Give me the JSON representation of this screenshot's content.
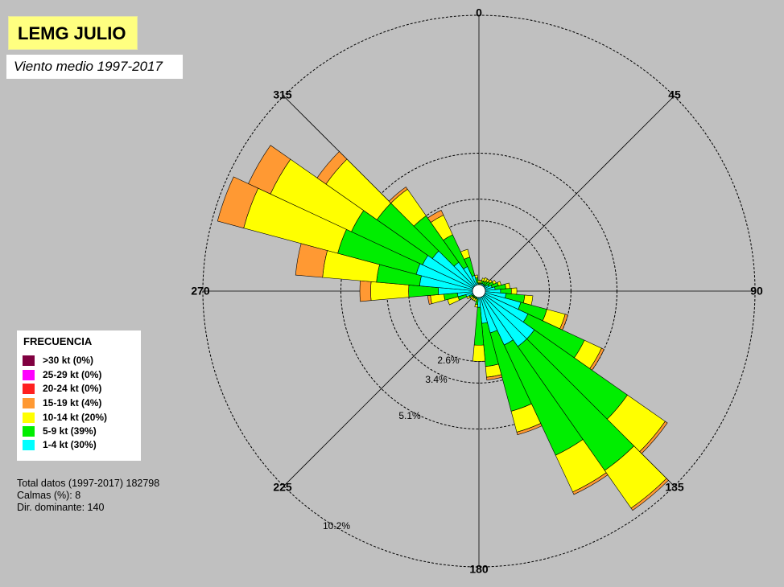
{
  "title": "LEMG JULIO",
  "subtitle": "Viento medio 1997-2017",
  "legend": {
    "title": "FRECUENCIA",
    "items": [
      {
        "label": ">30 kt (0%)",
        "color": "#800040"
      },
      {
        "label": "25-29 kt (0%)",
        "color": "#ff00ff"
      },
      {
        "label": "20-24 kt (0%)",
        "color": "#ff2020"
      },
      {
        "label": "15-19 kt (4%)",
        "color": "#ff9933"
      },
      {
        "label": "10-14 kt (20%)",
        "color": "#ffff00"
      },
      {
        "label": "5-9 kt (39%)",
        "color": "#00ee00"
      },
      {
        "label": "1-4 kt (30%)",
        "color": "#00ffff"
      }
    ]
  },
  "info": {
    "total": "Total datos (1997-2017) 182798",
    "calmas": "Calmas (%): 8",
    "dominante": "Dir. dominante:  140"
  },
  "chart_data": {
    "type": "wind-rose",
    "direction_labels": [
      "0",
      "45",
      "90",
      "135",
      "180",
      "225",
      "270",
      "315"
    ],
    "ring_labels": [
      "2.6%",
      "3.4%",
      "5.1%",
      "10.2%"
    ],
    "rings_percent": [
      2.6,
      3.4,
      5.1,
      10.2
    ],
    "bins": [
      "1-4 kt",
      "5-9 kt",
      "10-14 kt",
      "15-19 kt",
      "20-24 kt",
      "25-29 kt",
      ">30 kt"
    ],
    "bin_colors": [
      "#00ffff",
      "#00ee00",
      "#ffff00",
      "#ff9933",
      "#ff2020",
      "#ff00ff",
      "#800040"
    ],
    "directions": [
      {
        "dir": 10,
        "cum": [
          0.2,
          0.3,
          0.4
        ]
      },
      {
        "dir": 20,
        "cum": [
          0.3,
          0.4,
          0.5
        ]
      },
      {
        "dir": 30,
        "cum": [
          0.3,
          0.4,
          0.55
        ]
      },
      {
        "dir": 40,
        "cum": [
          0.3,
          0.45,
          0.55
        ]
      },
      {
        "dir": 50,
        "cum": [
          0.3,
          0.5,
          0.6
        ]
      },
      {
        "dir": 60,
        "cum": [
          0.4,
          0.6,
          0.7
        ]
      },
      {
        "dir": 70,
        "cum": [
          0.5,
          0.75,
          0.85
        ]
      },
      {
        "dir": 80,
        "cum": [
          0.6,
          1.0,
          1.15
        ]
      },
      {
        "dir": 90,
        "cum": [
          0.8,
          1.2,
          1.4
        ]
      },
      {
        "dir": 100,
        "cum": [
          1.0,
          1.7,
          2.0
        ]
      },
      {
        "dir": 110,
        "cum": [
          1.6,
          2.6,
          3.3,
          3.4
        ]
      },
      {
        "dir": 120,
        "cum": [
          2.0,
          4.3,
          5.0,
          5.1
        ]
      },
      {
        "dir": 130,
        "cum": [
          2.5,
          6.7,
          8.4,
          8.5
        ]
      },
      {
        "dir": 140,
        "cum": [
          2.5,
          8.1,
          9.8,
          9.9
        ]
      },
      {
        "dir": 150,
        "cum": [
          2.2,
          6.7,
          8.2,
          8.3
        ]
      },
      {
        "dir": 160,
        "cum": [
          1.6,
          4.6,
          5.4,
          5.5
        ]
      },
      {
        "dir": 170,
        "cum": [
          1.2,
          2.8,
          3.2,
          3.3
        ]
      },
      {
        "dir": 180,
        "cum": [
          0.6,
          2.0,
          2.6
        ]
      },
      {
        "dir": 190,
        "cum": [
          0.3,
          0.5,
          0.6
        ]
      },
      {
        "dir": 200,
        "cum": [
          0.2,
          0.3,
          0.4
        ]
      },
      {
        "dir": 210,
        "cum": [
          0.2,
          0.3,
          0.4
        ]
      },
      {
        "dir": 220,
        "cum": [
          0.2,
          0.3,
          0.4
        ]
      },
      {
        "dir": 230,
        "cum": [
          0.2,
          0.3,
          0.4
        ]
      },
      {
        "dir": 240,
        "cum": [
          0.3,
          0.4,
          0.5
        ]
      },
      {
        "dir": 250,
        "cum": [
          0.5,
          0.8,
          1.2
        ]
      },
      {
        "dir": 260,
        "cum": [
          0.8,
          1.3,
          1.8,
          1.9
        ]
      },
      {
        "dir": 270,
        "cum": [
          1.5,
          2.6,
          4.0,
          4.4
        ]
      },
      {
        "dir": 280,
        "cum": [
          2.2,
          3.8,
          5.8,
          6.8
        ]
      },
      {
        "dir": 290,
        "cum": [
          2.4,
          5.4,
          9.0,
          10.0
        ]
      },
      {
        "dir": 300,
        "cum": [
          2.3,
          5.2,
          8.5,
          9.4
        ]
      },
      {
        "dir": 310,
        "cum": [
          2.1,
          4.6,
          6.9,
          7.3
        ]
      },
      {
        "dir": 320,
        "cum": [
          1.3,
          3.4,
          4.6,
          4.7
        ]
      },
      {
        "dir": 330,
        "cum": [
          1.0,
          2.3,
          3.1,
          3.3
        ]
      },
      {
        "dir": 340,
        "cum": [
          0.6,
          1.3,
          1.6
        ]
      },
      {
        "dir": 350,
        "cum": [
          0.3,
          0.5,
          0.6
        ]
      },
      {
        "dir": 0,
        "cum": [
          0.2,
          0.3,
          0.4
        ]
      }
    ]
  }
}
